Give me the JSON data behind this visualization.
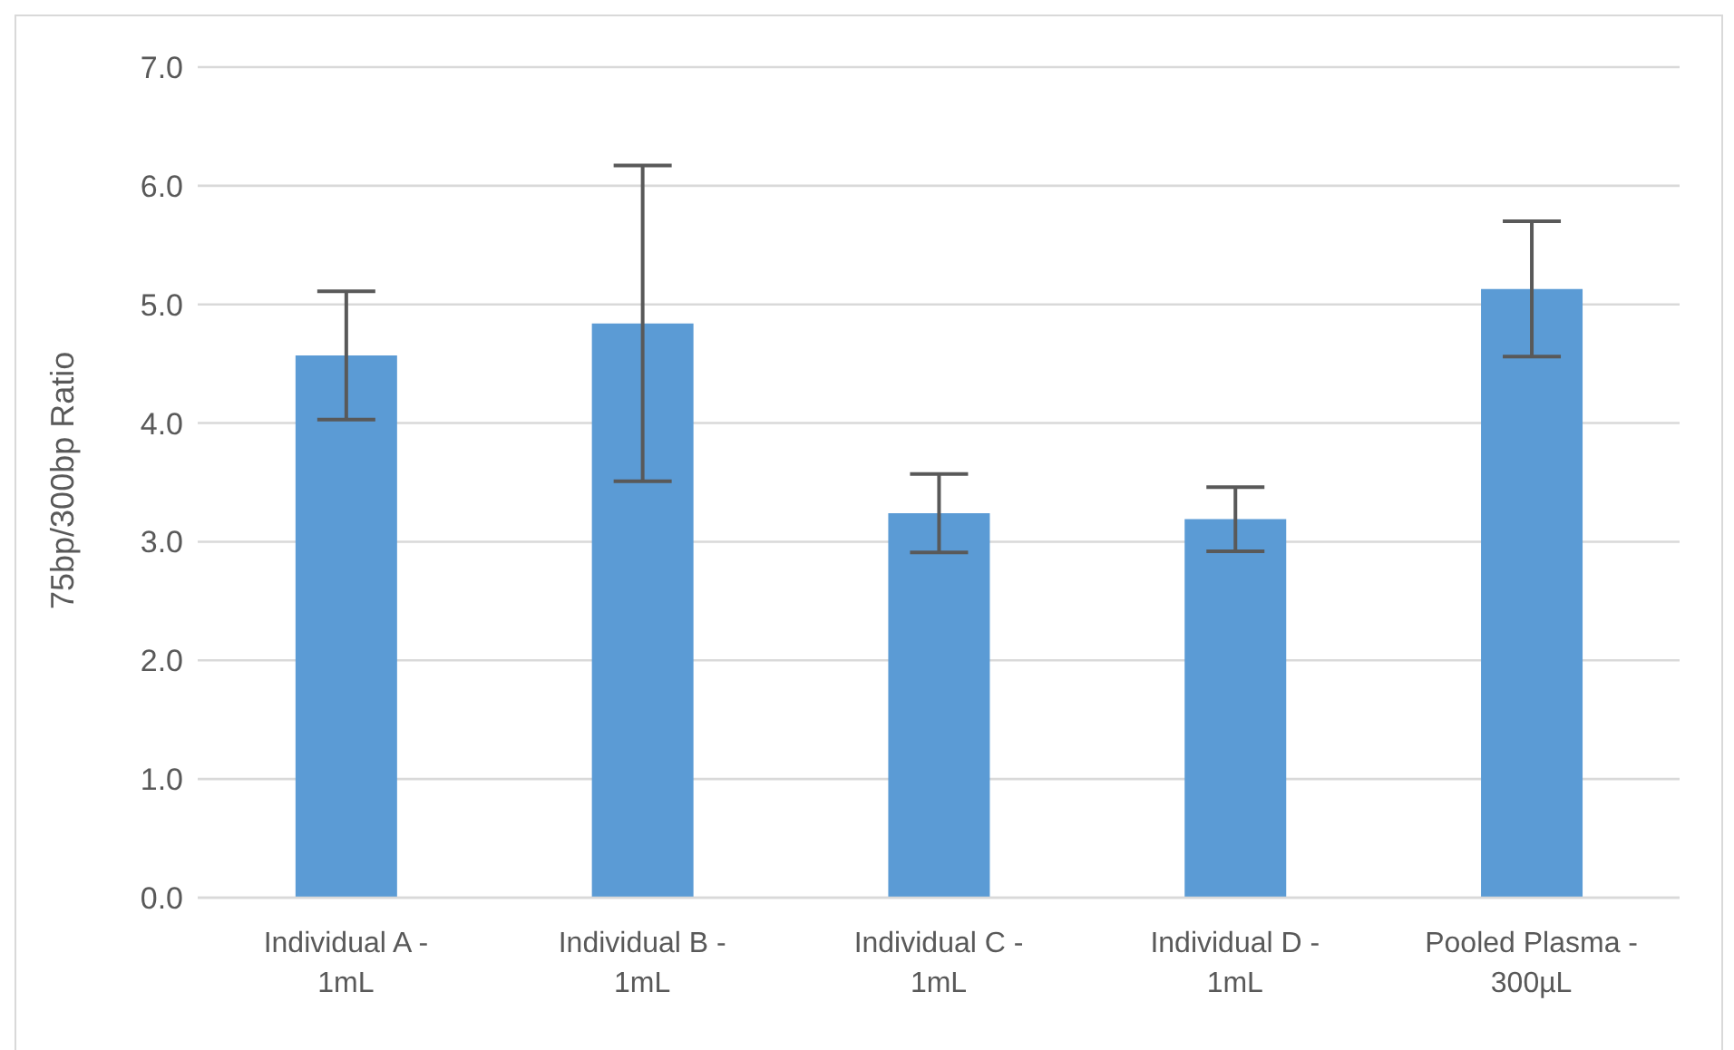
{
  "chart_data": {
    "type": "bar",
    "categories": [
      "Individual A -\n1mL",
      "Individual B -\n1mL",
      "Individual C -\n1mL",
      "Individual D -\n1mL",
      "Pooled Plasma -\n300µL"
    ],
    "values": [
      4.57,
      4.84,
      3.24,
      3.19,
      5.13
    ],
    "errors": [
      0.54,
      1.33,
      0.33,
      0.27,
      0.57
    ],
    "color": "#5b9bd5",
    "ylabel": "75bp/300bp Ratio",
    "ylim": [
      0,
      7
    ],
    "yticks": [
      {
        "value": 0,
        "label": "0.0"
      },
      {
        "value": 1,
        "label": "1.0"
      },
      {
        "value": 2,
        "label": "2.0"
      },
      {
        "value": 3,
        "label": "3.0"
      },
      {
        "value": 4,
        "label": "4.0"
      },
      {
        "value": 5,
        "label": "5.0"
      },
      {
        "value": 6,
        "label": "6.0"
      },
      {
        "value": 7,
        "label": "7.0"
      }
    ],
    "grid": "y"
  }
}
